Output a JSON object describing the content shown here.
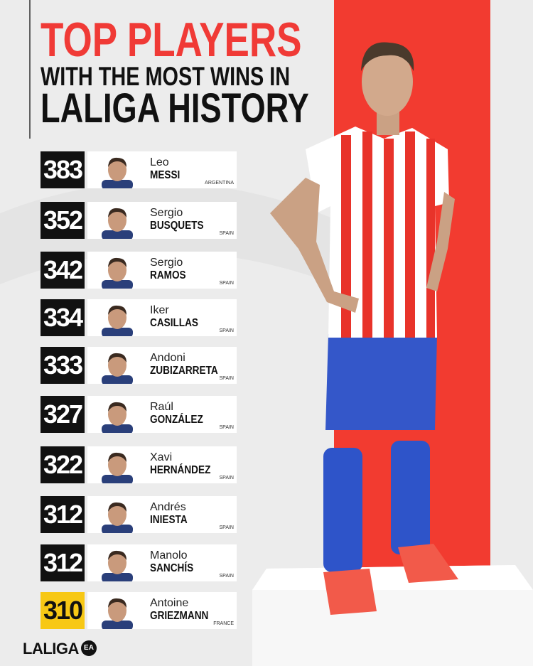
{
  "header": {
    "title_lines": [
      "TOP PLAYERS",
      "WITH THE MOST WINS IN",
      "LALIGA HISTORY"
    ]
  },
  "players": [
    {
      "wins": 383,
      "first_name": "Leo",
      "last_name": "MESSI",
      "country": "ARGENTINA"
    },
    {
      "wins": 352,
      "first_name": "Sergio",
      "last_name": "BUSQUETS",
      "country": "SPAIN"
    },
    {
      "wins": 342,
      "first_name": "Sergio",
      "last_name": "RAMOS",
      "country": "SPAIN"
    },
    {
      "wins": 334,
      "first_name": "Iker",
      "last_name": "CASILLAS",
      "country": "SPAIN"
    },
    {
      "wins": 333,
      "first_name": "Andoni",
      "last_name": "ZUBIZARRETA",
      "country": "SPAIN"
    },
    {
      "wins": 327,
      "first_name": "Raúl",
      "last_name": "GONZÁLEZ",
      "country": "SPAIN"
    },
    {
      "wins": 322,
      "first_name": "Xavi",
      "last_name": "HERNÁNDEZ",
      "country": "SPAIN"
    },
    {
      "wins": 312,
      "first_name": "Andrés",
      "last_name": "INIESTA",
      "country": "SPAIN"
    },
    {
      "wins": 312,
      "first_name": "Manolo",
      "last_name": "SANCHÍS",
      "country": "SPAIN"
    },
    {
      "wins": 310,
      "first_name": "Antoine",
      "last_name": "GRIEZMANN",
      "country": "FRANCE"
    }
  ],
  "footer": {
    "logo": "LALIGA",
    "badge": "EA"
  }
}
